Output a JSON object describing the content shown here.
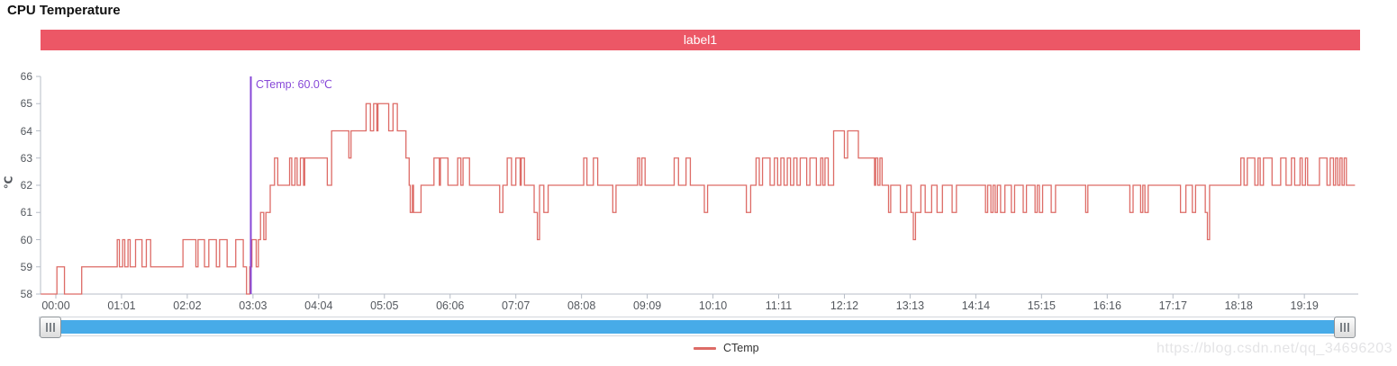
{
  "page": {
    "title": "CPU Temperature"
  },
  "banner": {
    "label": "label1",
    "color": "#ec5766"
  },
  "watermark": {
    "text": "https://blog.csdn.net/qq_34696203"
  },
  "chart_data": {
    "type": "line",
    "title": "CPU Temperature",
    "grid": false,
    "x_axis": {
      "interval_seconds": 61,
      "tick_labels": [
        "00:00",
        "01:01",
        "02:02",
        "03:03",
        "04:04",
        "05:05",
        "06:06",
        "07:07",
        "08:08",
        "09:09",
        "10:10",
        "11:11",
        "12:12",
        "13:13",
        "14:14",
        "15:15",
        "16:16",
        "17:17",
        "18:18",
        "19:19"
      ]
    },
    "y_axis": {
      "name": "℃",
      "min": 58,
      "max": 66,
      "step": 1
    },
    "legend": {
      "position": "bottom-center",
      "items": [
        {
          "label": "CTemp",
          "color": "#dd6b66"
        }
      ]
    },
    "mark_line": {
      "label": "CTemp: 60.0℃",
      "color": "#8748d8",
      "t_seconds": 181
    },
    "data_zoom": {
      "bar_color": "#47abe8",
      "left_grip_icon": "grip-lines",
      "right_grip_icon": "grip-lines"
    },
    "series": [
      {
        "name": "CTemp",
        "color": "#dd6b66",
        "unit": "℃",
        "points_t_value": [
          [
            -14,
            58
          ],
          [
            1,
            59
          ],
          [
            8,
            58
          ],
          [
            24,
            59
          ],
          [
            57,
            60
          ],
          [
            59,
            59
          ],
          [
            62,
            60
          ],
          [
            64,
            59
          ],
          [
            67,
            60
          ],
          [
            69,
            59
          ],
          [
            74,
            60
          ],
          [
            80,
            59
          ],
          [
            84,
            60
          ],
          [
            88,
            59
          ],
          [
            118,
            60
          ],
          [
            130,
            59
          ],
          [
            132,
            60
          ],
          [
            138,
            59
          ],
          [
            142,
            60
          ],
          [
            149,
            59
          ],
          [
            152,
            60
          ],
          [
            159,
            59
          ],
          [
            167,
            60
          ],
          [
            174,
            59
          ],
          [
            177,
            58
          ],
          [
            180,
            59
          ],
          [
            182,
            60
          ],
          [
            186,
            59
          ],
          [
            188,
            60
          ],
          [
            190,
            61
          ],
          [
            193,
            60
          ],
          [
            195,
            61
          ],
          [
            199,
            62
          ],
          [
            203,
            63
          ],
          [
            206,
            62
          ],
          [
            217,
            63
          ],
          [
            219,
            62
          ],
          [
            222,
            63
          ],
          [
            224,
            62
          ],
          [
            227,
            63
          ],
          [
            230,
            62
          ],
          [
            231,
            63
          ],
          [
            252,
            62
          ],
          [
            256,
            64
          ],
          [
            272,
            63
          ],
          [
            274,
            64
          ],
          [
            288,
            65
          ],
          [
            292,
            64
          ],
          [
            295,
            65
          ],
          [
            298,
            64
          ],
          [
            299,
            65
          ],
          [
            309,
            64
          ],
          [
            313,
            65
          ],
          [
            317,
            64
          ],
          [
            325,
            63
          ],
          [
            328,
            62
          ],
          [
            329,
            61
          ],
          [
            331,
            62
          ],
          [
            332,
            61
          ],
          [
            339,
            62
          ],
          [
            351,
            63
          ],
          [
            356,
            62
          ],
          [
            357,
            63
          ],
          [
            364,
            62
          ],
          [
            373,
            63
          ],
          [
            376,
            62
          ],
          [
            378,
            63
          ],
          [
            384,
            62
          ],
          [
            412,
            61
          ],
          [
            415,
            62
          ],
          [
            419,
            63
          ],
          [
            423,
            62
          ],
          [
            427,
            63
          ],
          [
            431,
            62
          ],
          [
            432,
            63
          ],
          [
            435,
            62
          ],
          [
            444,
            61
          ],
          [
            447,
            60
          ],
          [
            449,
            62
          ],
          [
            453,
            61
          ],
          [
            457,
            62
          ],
          [
            490,
            63
          ],
          [
            493,
            62
          ],
          [
            499,
            63
          ],
          [
            503,
            62
          ],
          [
            517,
            61
          ],
          [
            520,
            62
          ],
          [
            540,
            63
          ],
          [
            542,
            62
          ],
          [
            544,
            63
          ],
          [
            547,
            62
          ],
          [
            574,
            63
          ],
          [
            578,
            62
          ],
          [
            585,
            63
          ],
          [
            589,
            62
          ],
          [
            602,
            61
          ],
          [
            605,
            62
          ],
          [
            641,
            61
          ],
          [
            645,
            62
          ],
          [
            650,
            63
          ],
          [
            653,
            62
          ],
          [
            656,
            63
          ],
          [
            663,
            62
          ],
          [
            667,
            63
          ],
          [
            670,
            62
          ],
          [
            673,
            63
          ],
          [
            676,
            62
          ],
          [
            679,
            63
          ],
          [
            682,
            62
          ],
          [
            685,
            63
          ],
          [
            688,
            62
          ],
          [
            691,
            63
          ],
          [
            697,
            62
          ],
          [
            700,
            63
          ],
          [
            706,
            62
          ],
          [
            710,
            63
          ],
          [
            712,
            62
          ],
          [
            714,
            63
          ],
          [
            717,
            62
          ],
          [
            722,
            64
          ],
          [
            732,
            63
          ],
          [
            735,
            64
          ],
          [
            745,
            63
          ],
          [
            760,
            62
          ],
          [
            761,
            63
          ],
          [
            763,
            62
          ],
          [
            765,
            63
          ],
          [
            767,
            62
          ],
          [
            773,
            61
          ],
          [
            775,
            62
          ],
          [
            784,
            61
          ],
          [
            790,
            62
          ],
          [
            794,
            61
          ],
          [
            796,
            60
          ],
          [
            798,
            61
          ],
          [
            803,
            62
          ],
          [
            807,
            61
          ],
          [
            813,
            62
          ],
          [
            818,
            61
          ],
          [
            823,
            62
          ],
          [
            832,
            61
          ],
          [
            836,
            62
          ],
          [
            863,
            61
          ],
          [
            865,
            62
          ],
          [
            868,
            61
          ],
          [
            870,
            62
          ],
          [
            872,
            61
          ],
          [
            874,
            62
          ],
          [
            877,
            61
          ],
          [
            881,
            62
          ],
          [
            887,
            61
          ],
          [
            890,
            62
          ],
          [
            898,
            61
          ],
          [
            901,
            62
          ],
          [
            909,
            61
          ],
          [
            911,
            62
          ],
          [
            913,
            61
          ],
          [
            916,
            62
          ],
          [
            924,
            61
          ],
          [
            928,
            62
          ],
          [
            956,
            61
          ],
          [
            958,
            62
          ],
          [
            997,
            61
          ],
          [
            1000,
            62
          ],
          [
            1007,
            61
          ],
          [
            1009,
            62
          ],
          [
            1011,
            61
          ],
          [
            1014,
            62
          ],
          [
            1044,
            61
          ],
          [
            1049,
            62
          ],
          [
            1055,
            61
          ],
          [
            1058,
            62
          ],
          [
            1067,
            61
          ],
          [
            1069,
            60
          ],
          [
            1071,
            62
          ],
          [
            1100,
            63
          ],
          [
            1103,
            62
          ],
          [
            1106,
            63
          ],
          [
            1113,
            62
          ],
          [
            1116,
            63
          ],
          [
            1118,
            62
          ],
          [
            1121,
            63
          ],
          [
            1129,
            62
          ],
          [
            1137,
            63
          ],
          [
            1142,
            62
          ],
          [
            1147,
            63
          ],
          [
            1150,
            62
          ],
          [
            1155,
            63
          ],
          [
            1157,
            62
          ],
          [
            1160,
            63
          ],
          [
            1162,
            62
          ],
          [
            1173,
            63
          ],
          [
            1180,
            62
          ],
          [
            1183,
            63
          ],
          [
            1186,
            62
          ],
          [
            1188,
            63
          ],
          [
            1190,
            62
          ],
          [
            1192,
            63
          ],
          [
            1194,
            62
          ],
          [
            1196,
            63
          ],
          [
            1198,
            62
          ],
          [
            1206,
            62
          ]
        ]
      }
    ]
  }
}
